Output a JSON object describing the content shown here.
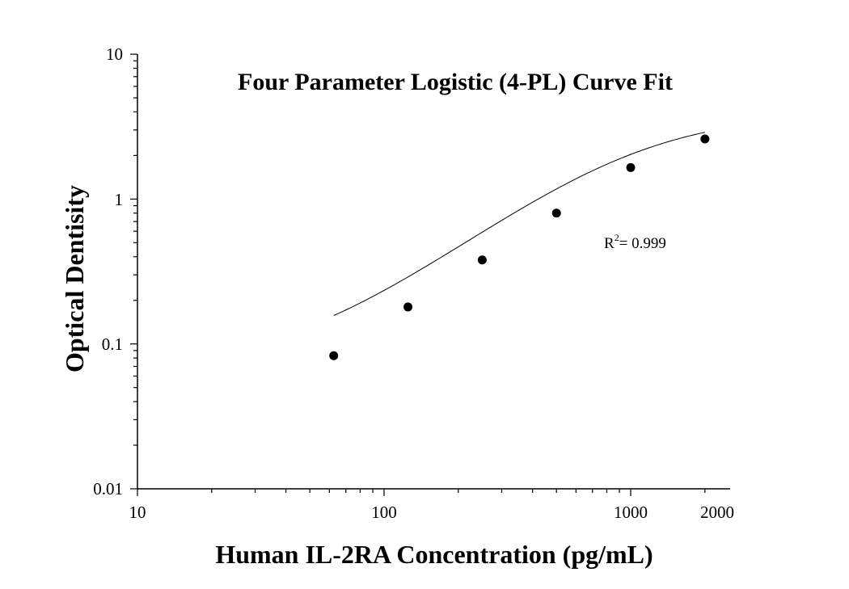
{
  "chart_data": {
    "type": "scatter",
    "title": "Four Parameter Logistic (4-PL) Curve Fit",
    "xlabel": "Human IL-2RA Concentration (pg/mL)",
    "ylabel": "Optical Dentisity",
    "xscale": "log",
    "yscale": "log",
    "xlim": [
      10,
      2000
    ],
    "ylim": [
      0.01,
      10
    ],
    "xticks": [
      "10",
      "100",
      "1000",
      "2000"
    ],
    "yticks": [
      "0.01",
      "0.1",
      "1",
      "10"
    ],
    "grid": false,
    "annotation": {
      "base": "R",
      "sup": "2",
      "text": "= 0.999"
    },
    "points": {
      "x": [
        62.5,
        125,
        250,
        500,
        1000,
        2000
      ],
      "y": [
        0.083,
        0.18,
        0.38,
        0.8,
        1.65,
        2.6
      ]
    },
    "fit_curve": {
      "A": 0.066,
      "B": 1.35,
      "C": 1000,
      "D": 4.0,
      "x_range": [
        62.5,
        2000
      ]
    }
  }
}
